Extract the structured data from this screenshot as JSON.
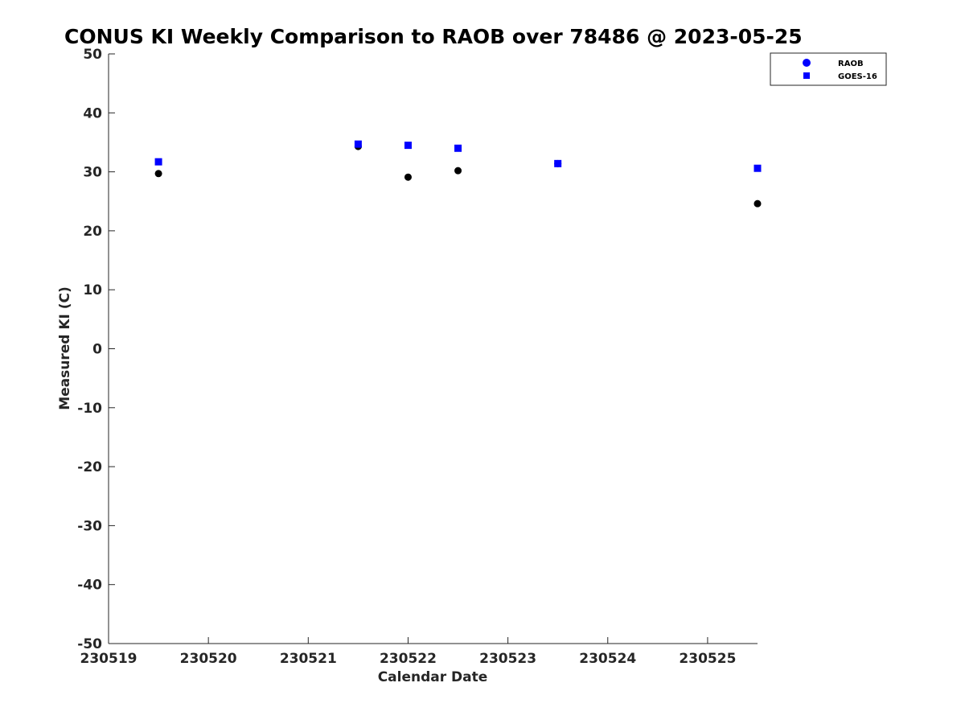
{
  "chart_data": {
    "type": "scatter",
    "title": "CONUS KI Weekly Comparison to RAOB over 78486 @ 2023-05-25",
    "xlabel": "Calendar Date",
    "ylabel": "Measured KI (C)",
    "xlim": [
      230519,
      230525.5
    ],
    "ylim": [
      -50,
      50
    ],
    "x_ticks": [
      230519,
      230520,
      230521,
      230522,
      230523,
      230524,
      230525
    ],
    "x_tick_labels": [
      "230519",
      "230520",
      "230521",
      "230522",
      "230523",
      "230524",
      "230525"
    ],
    "y_ticks": [
      -50,
      -40,
      -30,
      -20,
      -10,
      0,
      10,
      20,
      30,
      40,
      50
    ],
    "y_tick_labels": [
      "-50",
      "-40",
      "-30",
      "-20",
      "-10",
      "0",
      "10",
      "20",
      "30",
      "40",
      "50"
    ],
    "grid": false,
    "legend_position": "top-right-outside",
    "series": [
      {
        "name": "RAOB",
        "marker": "circle",
        "legend_color": "#0000ff",
        "point_color": "#000000",
        "x": [
          230519.5,
          230521.5,
          230522.0,
          230522.5,
          230523.5,
          230525.5
        ],
        "y": [
          29.7,
          34.3,
          29.1,
          30.2,
          31.4,
          24.6
        ]
      },
      {
        "name": "GOES-16",
        "marker": "square",
        "legend_color": "#0000ff",
        "point_color": "#0000ff",
        "x": [
          230519.5,
          230521.5,
          230522.0,
          230522.5,
          230523.5,
          230525.5
        ],
        "y": [
          31.7,
          34.7,
          34.5,
          34.0,
          31.4,
          30.6
        ]
      }
    ]
  }
}
